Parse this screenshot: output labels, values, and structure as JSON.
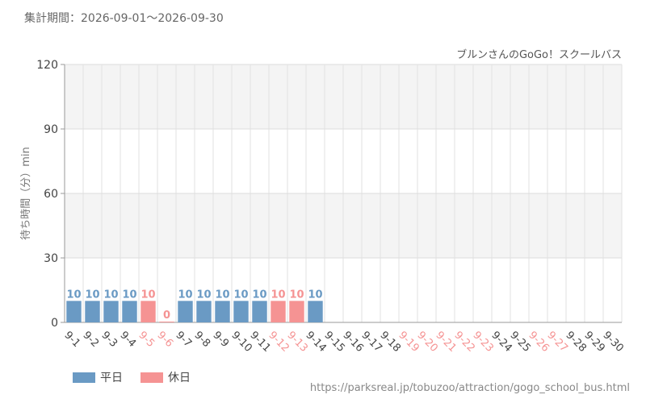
{
  "period": "集計期間：2026-09-01～2026-09-30",
  "source_url": "https://parksreal.jp/tobuzoo/attraction/gogo_school_bus.html",
  "colors": {
    "weekday": "#6a9ac4",
    "holiday": "#f59393",
    "grid": "#e2e2e2",
    "band": "#f4f4f4"
  },
  "legend": {
    "weekday": "平日",
    "holiday": "休日"
  },
  "chart_data": {
    "type": "bar",
    "title": "ブルンさんのGoGo！スクールバス",
    "ylabel": "待ち時間（分）min",
    "ylim": [
      0,
      120
    ],
    "yticks": [
      0,
      30,
      60,
      90,
      120
    ],
    "grid": true,
    "categories": [
      "9-1",
      "9-2",
      "9-3",
      "9-4",
      "9-5",
      "9-6",
      "9-7",
      "9-8",
      "9-9",
      "9-10",
      "9-11",
      "9-12",
      "9-13",
      "9-14",
      "9-15",
      "9-16",
      "9-17",
      "9-18",
      "9-19",
      "9-20",
      "9-21",
      "9-22",
      "9-23",
      "9-24",
      "9-25",
      "9-26",
      "9-27",
      "9-28",
      "9-29",
      "9-30"
    ],
    "values": [
      10,
      10,
      10,
      10,
      10,
      0,
      10,
      10,
      10,
      10,
      10,
      10,
      10,
      10,
      null,
      null,
      null,
      null,
      null,
      null,
      null,
      null,
      null,
      null,
      null,
      null,
      null,
      null,
      null,
      null
    ],
    "day_types": [
      "weekday",
      "weekday",
      "weekday",
      "weekday",
      "holiday",
      "holiday",
      "weekday",
      "weekday",
      "weekday",
      "weekday",
      "weekday",
      "holiday",
      "holiday",
      "weekday",
      "weekday",
      "weekday",
      "weekday",
      "weekday",
      "holiday",
      "holiday",
      "holiday",
      "holiday",
      "holiday",
      "weekday",
      "weekday",
      "holiday",
      "holiday",
      "weekday",
      "weekday",
      "weekday"
    ]
  }
}
